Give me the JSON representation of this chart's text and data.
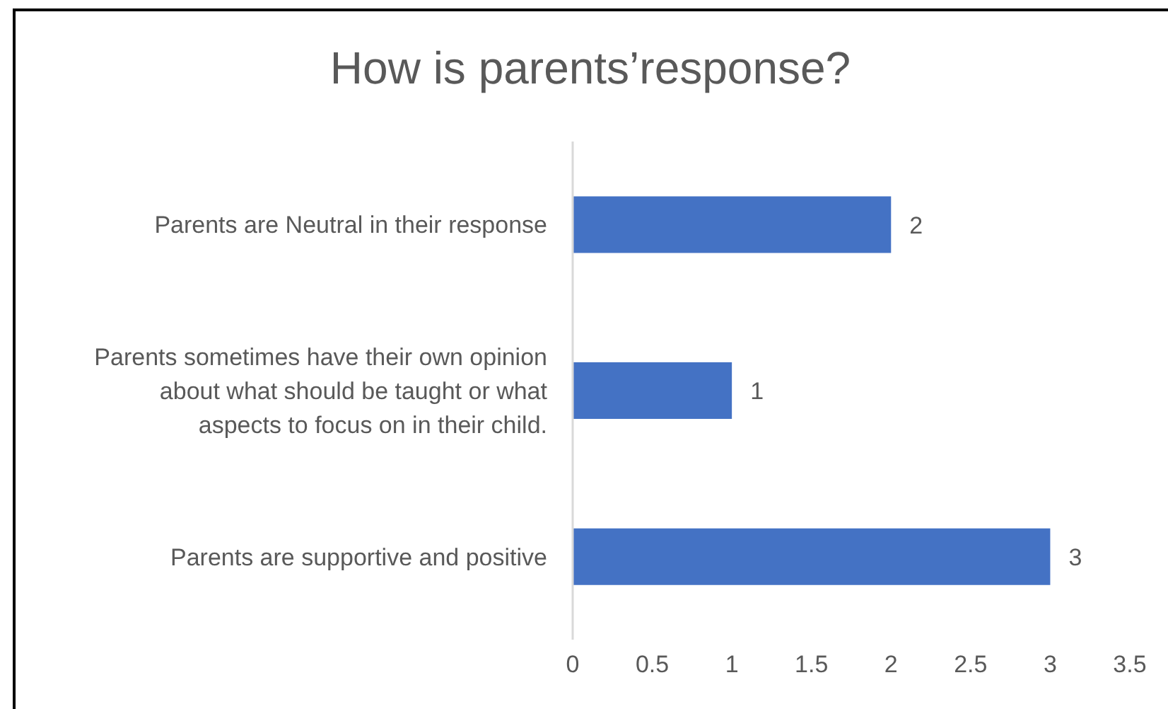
{
  "chart_data": {
    "type": "bar",
    "orientation": "horizontal",
    "title": "How is parents’response?",
    "categories": [
      "Parents are Neutral in their response",
      "Parents sometimes have their own opinion about what should be taught or what aspects to focus on in their child.",
      "Parents are supportive and positive"
    ],
    "values": [
      2,
      1,
      3
    ],
    "color": "#4472c4",
    "xlim": [
      0,
      3.5
    ],
    "xticks": [
      0,
      0.5,
      1,
      1.5,
      2,
      2.5,
      3,
      3.5
    ],
    "data_labels": true
  }
}
